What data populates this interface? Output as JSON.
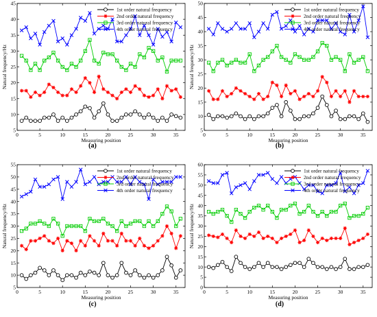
{
  "figure": {
    "colors": {
      "s1": "#000000",
      "s2": "#ff0000",
      "s3": "#00cc00",
      "s4": "#0000ff"
    }
  },
  "chart_data": [
    {
      "type": "line",
      "panel_label": "(a)",
      "xlabel": "Measuring position",
      "ylabel": "Natural frequency/Hz",
      "xlim": [
        0,
        37
      ],
      "ylim": [
        5,
        45
      ],
      "xticks": [
        "0",
        "5",
        "10",
        "15",
        "20",
        "25",
        "30",
        "35"
      ],
      "yticks": [
        "5",
        "10",
        "15",
        "20",
        "25",
        "30",
        "35",
        "40",
        "45"
      ],
      "legend_position": "top-right",
      "x": [
        1,
        2,
        3,
        4,
        5,
        6,
        7,
        8,
        9,
        10,
        11,
        12,
        13,
        14,
        15,
        16,
        17,
        18,
        19,
        20,
        21,
        22,
        23,
        24,
        25,
        26,
        27,
        28,
        29,
        30,
        31,
        32,
        33,
        34,
        35,
        36
      ],
      "series": [
        {
          "name": "1st order natural frequency",
          "marker": "circle",
          "values": [
            8,
            9,
            8,
            8,
            8,
            9,
            9,
            10,
            8,
            9,
            8,
            9,
            10,
            11,
            12.5,
            12,
            9,
            11,
            13.5,
            10,
            8,
            8,
            9,
            10,
            10,
            11,
            10,
            9,
            10,
            9,
            8,
            9,
            8,
            10,
            9.5,
            9
          ]
        },
        {
          "name": "2nd order natural frequency",
          "marker": "star",
          "values": [
            17.5,
            17.5,
            15.5,
            17,
            16,
            17,
            19.5,
            18.5,
            17,
            16,
            16,
            18,
            17,
            19,
            21.5,
            20,
            17,
            22,
            18,
            17,
            16,
            15,
            17,
            18,
            17,
            19,
            18,
            16,
            15.5,
            16,
            18,
            15,
            19,
            17.5,
            18,
            15.5
          ]
        },
        {
          "name": "3rd order natural frequency",
          "marker": "square",
          "values": [
            28.5,
            27,
            24,
            26,
            24,
            27,
            28,
            29.5,
            27,
            25,
            24,
            26,
            25,
            27,
            30,
            33.5,
            27,
            26,
            29.5,
            29,
            29,
            27,
            25,
            24,
            26,
            25,
            29,
            28,
            31,
            30,
            27,
            28,
            23.5,
            27,
            27,
            27
          ]
        },
        {
          "name": "4th order natural frequency",
          "marker": "x",
          "values": [
            36.5,
            37.5,
            34,
            35.5,
            32,
            36,
            38,
            39.5,
            33,
            34,
            32,
            35,
            37,
            40.5,
            39.5,
            42,
            35.5,
            37,
            38,
            37,
            40,
            33,
            33,
            35,
            37,
            41,
            35,
            38,
            35,
            32,
            37,
            34.5,
            36,
            33,
            39,
            37.5
          ]
        }
      ]
    },
    {
      "type": "line",
      "panel_label": "(b)",
      "xlabel": "Measuring  position",
      "ylabel": "Natural frequency/Hz",
      "xlim": [
        0,
        37
      ],
      "ylim": [
        5,
        50
      ],
      "xticks": [
        "0",
        "5",
        "10",
        "15",
        "20",
        "25",
        "30",
        "35"
      ],
      "yticks": [
        "5",
        "10",
        "15",
        "20",
        "25",
        "30",
        "35",
        "40",
        "45",
        "50"
      ],
      "legend_position": "top-right",
      "x": [
        1,
        2,
        3,
        4,
        5,
        6,
        7,
        8,
        9,
        10,
        11,
        12,
        13,
        14,
        15,
        16,
        17,
        18,
        19,
        20,
        21,
        22,
        23,
        24,
        25,
        26,
        27,
        28,
        29,
        30,
        31,
        32,
        33,
        34,
        35,
        36
      ],
      "series": [
        {
          "name": "1st order natural frequency",
          "marker": "circle",
          "values": [
            10.5,
            9,
            10,
            10,
            9.5,
            10,
            11,
            10,
            9,
            10,
            9,
            10,
            10,
            11,
            13,
            14,
            10,
            15,
            12,
            9,
            9,
            10,
            10,
            11,
            13,
            17,
            14,
            10,
            12,
            9,
            9,
            10,
            10,
            9,
            11,
            8
          ]
        },
        {
          "name": "2nd order natural frequency",
          "marker": "star",
          "values": [
            19,
            16,
            16,
            19,
            17,
            18,
            20,
            19,
            18,
            17,
            16,
            18,
            16,
            17,
            22,
            21,
            17,
            21,
            18,
            19,
            16,
            17,
            18,
            17,
            19,
            24,
            22,
            17,
            19,
            17,
            19,
            15,
            19,
            17,
            17,
            17
          ]
        },
        {
          "name": "3rd order natural frequency",
          "marker": "square",
          "values": [
            29,
            26,
            29,
            30,
            28,
            29,
            30,
            29,
            29,
            32,
            26,
            28,
            30,
            31,
            33,
            35,
            31,
            30,
            29,
            32,
            31,
            30,
            30,
            31,
            33,
            36,
            35,
            30,
            31,
            30,
            26,
            32,
            29,
            30,
            31,
            26
          ]
        },
        {
          "name": "4th order natural frequency",
          "marker": "x",
          "values": [
            41,
            39,
            43,
            41,
            40,
            41,
            43,
            41,
            41,
            43,
            38,
            40,
            43,
            41,
            46,
            47,
            41,
            42,
            44,
            40,
            42,
            39,
            41,
            40,
            44,
            44,
            44,
            41,
            43,
            40,
            39,
            46,
            40,
            44,
            49,
            38
          ]
        }
      ]
    },
    {
      "type": "line",
      "panel_label": "(c)",
      "xlabel": "Measuring  position",
      "ylabel": "Natural frequency/Hz",
      "xlim": [
        0,
        37
      ],
      "ylim": [
        5,
        55
      ],
      "xticks": [
        "0",
        "5",
        "10",
        "15",
        "20",
        "25",
        "30",
        "35"
      ],
      "yticks": [
        "5",
        "10",
        "15",
        "20",
        "25",
        "30",
        "35",
        "40",
        "45",
        "50",
        "55"
      ],
      "legend_position": "top-right",
      "x": [
        1,
        2,
        3,
        4,
        5,
        6,
        7,
        8,
        9,
        10,
        11,
        12,
        13,
        14,
        15,
        16,
        17,
        18,
        19,
        20,
        21,
        22,
        23,
        24,
        25,
        26,
        27,
        28,
        29,
        30,
        31,
        32,
        33,
        34,
        35,
        36
      ],
      "series": [
        {
          "name": "1st order natural frequency",
          "marker": "circle",
          "values": [
            10,
            8.5,
            10,
            11,
            13,
            12,
            10,
            12,
            10,
            8,
            10,
            10,
            9,
            11,
            10,
            11.5,
            11,
            10,
            15,
            10,
            9,
            10,
            15,
            11,
            10,
            12,
            10,
            9,
            10,
            9,
            10,
            12,
            17.5,
            14,
            9,
            12
          ]
        },
        {
          "name": "2nd order natural frequency",
          "marker": "star",
          "values": [
            22,
            20.5,
            24,
            24,
            25,
            26,
            24,
            23,
            25,
            20,
            24,
            23,
            20,
            24,
            22,
            26,
            24,
            22,
            27,
            24,
            24,
            22,
            27,
            24,
            24,
            22,
            25,
            22,
            21,
            22,
            24,
            26,
            30,
            27,
            21,
            26
          ]
        },
        {
          "name": "3rd order natural frequency",
          "marker": "square",
          "values": [
            28,
            29,
            31,
            31,
            32,
            31,
            30,
            33,
            31,
            26,
            30,
            30,
            30,
            30,
            28,
            33,
            32,
            32,
            33,
            31,
            30,
            28,
            32,
            30,
            31,
            32,
            32,
            30,
            32,
            30,
            32,
            35,
            38,
            36,
            30,
            33
          ]
        },
        {
          "name": "4th order natural frequency",
          "marker": "x",
          "values": [
            42,
            43,
            44,
            49,
            46,
            46,
            47,
            49,
            50,
            41,
            48,
            46,
            48,
            53,
            47,
            48,
            50,
            47,
            48,
            48,
            50,
            48,
            48,
            50,
            47,
            50,
            48,
            47,
            41,
            49,
            47,
            48,
            48,
            48,
            50,
            50
          ]
        }
      ]
    },
    {
      "type": "line",
      "panel_label": "(d)",
      "xlabel": "Measuring  position",
      "ylabel": "Natural frequency/Hz",
      "xlim": [
        0,
        37
      ],
      "ylim": [
        0,
        60
      ],
      "xticks": [
        "0",
        "5",
        "10",
        "15",
        "20",
        "25",
        "30",
        "35"
      ],
      "yticks": [
        "0",
        "5",
        "10",
        "15",
        "20",
        "25",
        "30",
        "35",
        "40",
        "45",
        "50",
        "55",
        "60"
      ],
      "legend_position": "top-right",
      "x": [
        1,
        2,
        3,
        4,
        5,
        6,
        7,
        8,
        9,
        10,
        11,
        12,
        13,
        14,
        15,
        16,
        17,
        18,
        19,
        20,
        21,
        22,
        23,
        24,
        25,
        26,
        27,
        28,
        29,
        30,
        31,
        32,
        33,
        34,
        35,
        36
      ],
      "series": [
        {
          "name": "1st order natural frequency",
          "marker": "circle",
          "values": [
            10,
            9.5,
            11,
            12.5,
            10,
            8,
            15,
            12,
            10,
            9,
            10,
            12,
            10,
            12,
            10,
            10,
            9,
            10,
            11,
            12,
            12,
            10,
            14,
            12,
            10,
            10,
            9,
            10,
            9,
            10,
            14,
            9,
            9,
            10,
            10,
            11
          ]
        },
        {
          "name": "2nd order natural frequency",
          "marker": "star",
          "values": [
            25.5,
            25,
            24.5,
            26,
            24,
            22,
            28,
            25,
            24,
            26,
            25,
            27,
            24,
            25,
            24,
            22,
            24,
            25,
            26,
            28,
            22,
            23,
            28,
            25,
            22,
            24,
            23,
            24,
            24,
            24,
            29,
            21,
            22,
            23,
            24,
            26
          ]
        },
        {
          "name": "3rd order natural frequency",
          "marker": "square",
          "values": [
            37,
            36,
            37,
            38,
            35,
            32,
            38,
            36,
            34,
            37,
            39,
            40,
            38,
            40,
            37,
            34,
            38,
            38,
            40,
            41,
            36,
            37,
            40,
            37,
            35,
            37,
            35,
            37,
            37,
            40,
            41,
            34,
            35,
            35,
            36,
            39
          ]
        },
        {
          "name": "4th order natural frequency",
          "marker": "x",
          "values": [
            52,
            51,
            51,
            55,
            56,
            46,
            49,
            50,
            51,
            48,
            52,
            55,
            55,
            56,
            53,
            51,
            54,
            51,
            53,
            54,
            51,
            48,
            50,
            50,
            47,
            46,
            50,
            50,
            51,
            56,
            47,
            49,
            46,
            50,
            51,
            57
          ]
        }
      ]
    }
  ]
}
